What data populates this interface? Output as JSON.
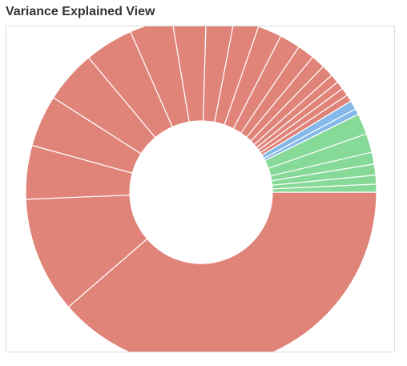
{
  "panel": {
    "title": "Variance Explained View"
  },
  "colors": {
    "primary": "#e08379",
    "secondary": "#85b8e8",
    "tertiary": "#86d996",
    "separator": "#ffffff",
    "border": "#dcdcdc"
  },
  "chart_data": {
    "type": "pie",
    "variant": "donut",
    "title": "",
    "legend": "none",
    "slices": [
      {
        "group": "primary",
        "value": 42.2
      },
      {
        "group": "primary",
        "value": 11.7
      },
      {
        "group": "primary",
        "value": 5.4
      },
      {
        "group": "primary",
        "value": 5.2
      },
      {
        "group": "primary",
        "value": 5.3
      },
      {
        "group": "primary",
        "value": 4.9
      },
      {
        "group": "primary",
        "value": 4.3
      },
      {
        "group": "primary",
        "value": 3.4
      },
      {
        "group": "primary",
        "value": 2.8
      },
      {
        "group": "primary",
        "value": 2.5
      },
      {
        "group": "primary",
        "value": 2.4
      },
      {
        "group": "primary",
        "value": 2.1
      },
      {
        "group": "primary",
        "value": 1.7
      },
      {
        "group": "primary",
        "value": 1.4
      },
      {
        "group": "primary",
        "value": 1.2
      },
      {
        "group": "primary",
        "value": 0.9
      },
      {
        "group": "primary",
        "value": 0.8
      },
      {
        "group": "primary",
        "value": 0.8
      },
      {
        "group": "primary",
        "value": 0.7
      },
      {
        "group": "secondary",
        "value": 0.9
      },
      {
        "group": "secondary",
        "value": 0.6
      },
      {
        "group": "tertiary",
        "value": 2.1
      },
      {
        "group": "tertiary",
        "value": 1.9
      },
      {
        "group": "tertiary",
        "value": 1.2
      },
      {
        "group": "tertiary",
        "value": 1.1
      },
      {
        "group": "tertiary",
        "value": 0.9
      },
      {
        "group": "tertiary",
        "value": 0.8
      }
    ]
  }
}
